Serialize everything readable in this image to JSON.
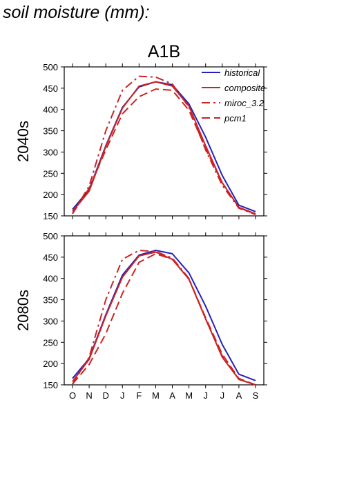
{
  "figure_title": "soil moisture (mm):",
  "colors": {
    "historical": "#2222bb",
    "composite": "#cc2222",
    "miroc_3.2": "#cc2222",
    "pcm1": "#cc2222",
    "axis": "#000000"
  },
  "chart_data": [
    {
      "type": "line",
      "title": "A1B",
      "row_label": "2040s",
      "xlabel": "",
      "ylabel": "",
      "ylim": [
        150,
        500
      ],
      "yticks": [
        150,
        200,
        250,
        300,
        350,
        400,
        450,
        500
      ],
      "categories": [
        "O",
        "N",
        "D",
        "J",
        "F",
        "M",
        "A",
        "M",
        "J",
        "J",
        "A",
        "S"
      ],
      "legend_position": "top-right",
      "show_x_tick_labels": false,
      "series": [
        {
          "name": "historical",
          "dash": "solid",
          "color": "#2222bb",
          "values": [
            165,
            212,
            315,
            405,
            453,
            465,
            458,
            413,
            335,
            245,
            175,
            160
          ]
        },
        {
          "name": "composite",
          "dash": "solid",
          "color": "#cc2222",
          "values": [
            160,
            208,
            313,
            403,
            455,
            465,
            455,
            408,
            315,
            228,
            170,
            155
          ]
        },
        {
          "name": "miroc_3.2",
          "dash": "dashdot",
          "color": "#cc2222",
          "values": [
            155,
            220,
            350,
            445,
            478,
            476,
            460,
            405,
            305,
            222,
            168,
            153
          ]
        },
        {
          "name": "pcm1",
          "dash": "dashed",
          "color": "#cc2222",
          "values": [
            155,
            215,
            305,
            390,
            430,
            448,
            445,
            398,
            308,
            228,
            170,
            153
          ]
        }
      ]
    },
    {
      "type": "line",
      "title": "",
      "row_label": "2080s",
      "xlabel": "",
      "ylabel": "",
      "ylim": [
        150,
        500
      ],
      "yticks": [
        150,
        200,
        250,
        300,
        350,
        400,
        450,
        500
      ],
      "categories": [
        "O",
        "N",
        "D",
        "J",
        "F",
        "M",
        "A",
        "M",
        "J",
        "J",
        "A",
        "S"
      ],
      "legend_position": "none",
      "show_x_tick_labels": true,
      "series": [
        {
          "name": "historical",
          "dash": "solid",
          "color": "#2222bb",
          "values": [
            165,
            212,
            315,
            408,
            455,
            466,
            458,
            413,
            335,
            245,
            175,
            160
          ]
        },
        {
          "name": "composite",
          "dash": "solid",
          "color": "#cc2222",
          "values": [
            158,
            210,
            312,
            403,
            453,
            462,
            445,
            398,
            305,
            215,
            163,
            150
          ]
        },
        {
          "name": "miroc_3.2",
          "dash": "dashdot",
          "color": "#cc2222",
          "values": [
            152,
            215,
            350,
            445,
            466,
            463,
            448,
            400,
            305,
            218,
            163,
            150
          ]
        },
        {
          "name": "pcm1",
          "dash": "dashed",
          "color": "#cc2222",
          "values": [
            152,
            198,
            270,
            365,
            438,
            458,
            445,
            398,
            308,
            222,
            165,
            150
          ]
        }
      ]
    }
  ]
}
